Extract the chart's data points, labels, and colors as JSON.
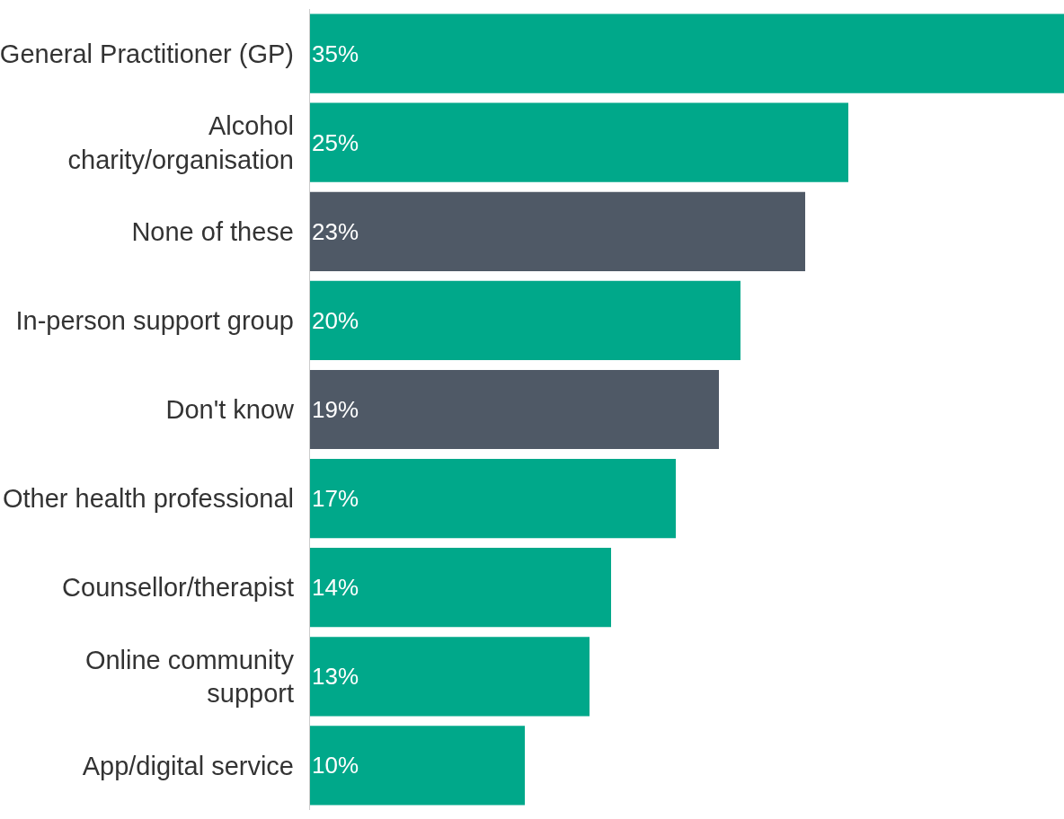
{
  "chart_data": {
    "type": "bar",
    "orientation": "horizontal",
    "categories": [
      "General Practitioner (GP)",
      "Alcohol\ncharity/organisation",
      "None of these",
      "In-person support group",
      "Don't know",
      "Other health professional",
      "Counsellor/therapist",
      "Online community\nsupport",
      "App/digital service"
    ],
    "values": [
      35,
      25,
      23,
      20,
      19,
      17,
      14,
      13,
      10
    ],
    "value_labels": [
      "35%",
      "25%",
      "23%",
      "20%",
      "19%",
      "17%",
      "14%",
      "13%",
      "10%"
    ],
    "colors": [
      "#00a88a",
      "#00a88a",
      "#4f5966",
      "#00a88a",
      "#4f5966",
      "#00a88a",
      "#00a88a",
      "#00a88a",
      "#00a88a"
    ],
    "xlim": [
      0,
      35
    ],
    "tick_labels": "y"
  }
}
